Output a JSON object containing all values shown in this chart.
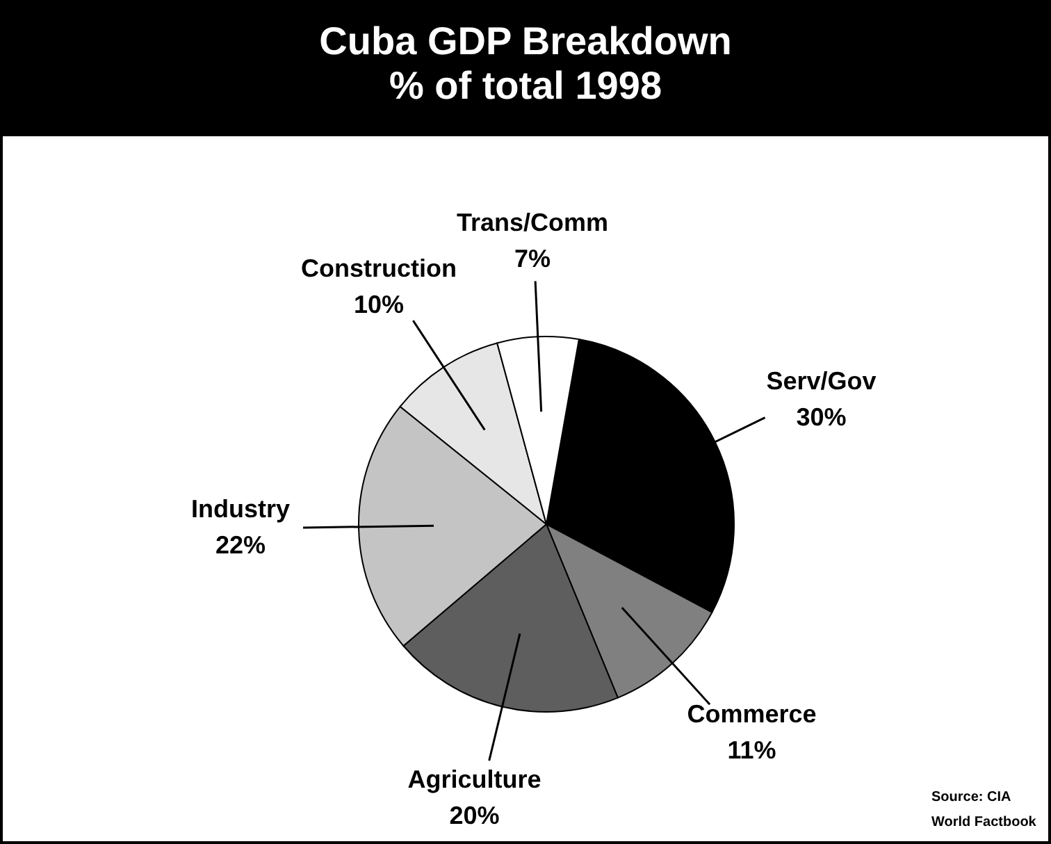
{
  "chart_data": {
    "type": "pie",
    "title": "Cuba GDP Breakdown",
    "subtitle": "% of total 1998",
    "categories": [
      "Serv/Gov",
      "Commerce",
      "Agriculture",
      "Industry",
      "Construction",
      "Trans/Comm"
    ],
    "values": [
      30,
      11,
      20,
      22,
      10,
      7
    ],
    "value_labels": [
      "30%",
      "11%",
      "20%",
      "22%",
      "10%",
      "7%"
    ],
    "colors": [
      "#000000",
      "#808080",
      "#5e5e5e",
      "#c4c4c4",
      "#e6e6e6",
      "#ffffff"
    ],
    "annotations": [
      "Source: CIA World Factbook"
    ]
  }
}
